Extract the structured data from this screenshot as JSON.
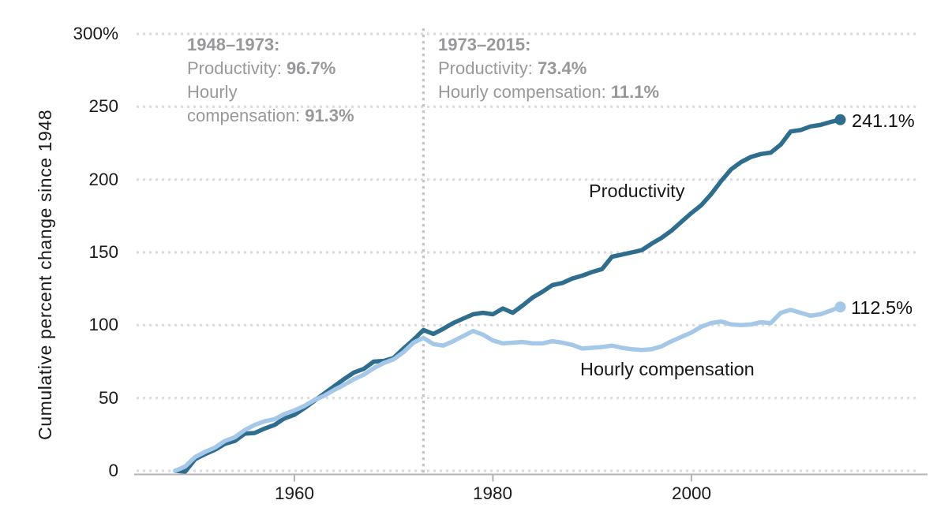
{
  "annotations": {
    "period1": {
      "title": "1948–1973:",
      "l1_label": "Productivity: ",
      "l1_value": "96.7%",
      "l2_label": "Hourly",
      "l3_label": "compensation: ",
      "l3_value": "91.3%"
    },
    "period2": {
      "title": "1973–2015:",
      "l1_label": "Productivity: ",
      "l1_value": "73.4%",
      "l2_label": "Hourly compensation: ",
      "l2_value": "11.1%"
    }
  },
  "series_labels": {
    "productivity": "Productivity",
    "compensation": "Hourly compensation"
  },
  "end_labels": {
    "productivity": "241.1%",
    "compensation": "112.5%"
  },
  "chart_data": {
    "type": "line",
    "title": "",
    "xlabel": "",
    "ylabel": "Cumulative percent change since 1948",
    "ylim": [
      0,
      300
    ],
    "x_range": [
      1948,
      2015
    ],
    "yticks": [
      0,
      50,
      100,
      150,
      200,
      250,
      300
    ],
    "ytick_labels": [
      "0",
      "50",
      "100",
      "150",
      "200",
      "250",
      "300%"
    ],
    "xticks": [
      1960,
      1980,
      2000
    ],
    "xtick_labels": [
      "1960",
      "1980",
      "2000"
    ],
    "grid": "horizontal-dotted",
    "legend_position": "inline-labels",
    "reference_line_x": 1973,
    "colors": {
      "productivity": "#2f6d8e",
      "compensation": "#a6c8e8",
      "grid": "#dcdcdc",
      "axis": "#b3b3b3",
      "reference": "#c4c4c4",
      "text": "#1a1a1a",
      "annotation": "#98989a"
    },
    "x": [
      1948,
      1949,
      1950,
      1951,
      1952,
      1953,
      1954,
      1955,
      1956,
      1957,
      1958,
      1959,
      1960,
      1961,
      1962,
      1963,
      1964,
      1965,
      1966,
      1967,
      1968,
      1969,
      1970,
      1971,
      1972,
      1973,
      1974,
      1975,
      1976,
      1977,
      1978,
      1979,
      1980,
      1981,
      1982,
      1983,
      1984,
      1985,
      1986,
      1987,
      1988,
      1989,
      1990,
      1991,
      1992,
      1993,
      1994,
      1995,
      1996,
      1997,
      1998,
      1999,
      2000,
      2001,
      2002,
      2003,
      2004,
      2005,
      2006,
      2007,
      2008,
      2009,
      2010,
      2011,
      2012,
      2013,
      2014,
      2015
    ],
    "series": [
      {
        "id": "productivity",
        "name": "Productivity",
        "color": "#2f6d8e",
        "end_value": 241.1,
        "values": [
          0.0,
          -0.5,
          8.0,
          11.5,
          14.5,
          18.5,
          20.5,
          25.5,
          26.0,
          29.0,
          31.5,
          36.0,
          38.5,
          43.0,
          48.0,
          53.0,
          58.0,
          63.0,
          67.5,
          70.0,
          75.0,
          75.5,
          77.5,
          84.0,
          90.0,
          96.7,
          94.0,
          97.5,
          101.5,
          104.5,
          107.5,
          108.5,
          107.5,
          111.5,
          108.5,
          113.5,
          119.0,
          123.0,
          127.5,
          129.0,
          132.0,
          134.0,
          136.5,
          138.5,
          147.0,
          148.5,
          150.0,
          151.5,
          156.0,
          160.0,
          165.0,
          171.0,
          177.0,
          182.5,
          190.0,
          199.0,
          207.0,
          212.0,
          215.5,
          217.5,
          218.5,
          224.0,
          233.0,
          234.0,
          236.5,
          237.5,
          239.5,
          241.1
        ]
      },
      {
        "id": "compensation",
        "name": "Hourly compensation",
        "color": "#a6c8e8",
        "end_value": 112.5,
        "values": [
          0.0,
          3.0,
          9.5,
          13.0,
          16.0,
          20.5,
          23.0,
          28.0,
          31.5,
          34.0,
          35.5,
          39.0,
          41.5,
          44.5,
          48.5,
          51.5,
          55.5,
          59.0,
          63.0,
          66.0,
          70.5,
          74.0,
          76.5,
          81.5,
          88.0,
          91.3,
          87.0,
          86.0,
          89.0,
          92.5,
          96.0,
          93.5,
          89.5,
          87.5,
          88.0,
          88.5,
          87.5,
          87.5,
          89.0,
          88.0,
          86.5,
          84.0,
          84.5,
          85.0,
          86.0,
          84.5,
          83.5,
          83.0,
          83.5,
          85.5,
          89.0,
          92.0,
          95.0,
          99.0,
          101.5,
          102.5,
          100.5,
          100.0,
          100.5,
          102.0,
          101.5,
          108.5,
          110.5,
          108.5,
          106.5,
          107.5,
          110.0,
          112.5
        ]
      }
    ]
  }
}
